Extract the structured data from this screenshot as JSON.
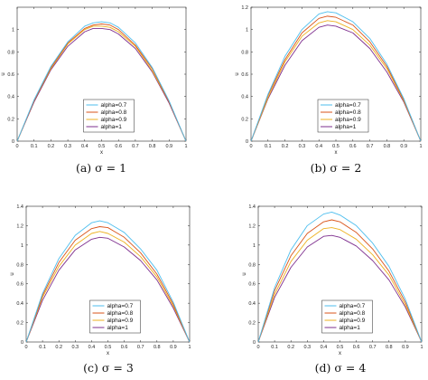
{
  "series_colors": [
    "#4DBEEE",
    "#D95319",
    "#EDB120",
    "#7E2F8E"
  ],
  "chart_data": [
    {
      "type": "line",
      "caption": "(a)  σ = 1",
      "xlabel": "x",
      "ylabel": "u",
      "xlim": [
        0,
        1
      ],
      "ylim": [
        0,
        1.2
      ],
      "xticks": [
        "0",
        "0.1",
        "0.2",
        "0.3",
        "0.4",
        "0.5",
        "0.6",
        "0.7",
        "0.8",
        "0.9",
        "1"
      ],
      "yticks": [
        "0",
        "0.2",
        "0.4",
        "0.6",
        "0.8",
        "1"
      ],
      "legend_position": "bottom-center",
      "x": [
        0,
        0.1,
        0.2,
        0.3,
        0.4,
        0.45,
        0.5,
        0.55,
        0.6,
        0.7,
        0.8,
        0.9,
        1
      ],
      "series": [
        {
          "name": "alpha=0.7",
          "values": [
            0,
            0.37,
            0.67,
            0.89,
            1.03,
            1.06,
            1.07,
            1.06,
            1.02,
            0.88,
            0.66,
            0.36,
            0
          ]
        },
        {
          "name": "alpha=0.8",
          "values": [
            0,
            0.36,
            0.66,
            0.88,
            1.01,
            1.04,
            1.05,
            1.04,
            1.0,
            0.86,
            0.65,
            0.35,
            0
          ]
        },
        {
          "name": "alpha=0.9",
          "values": [
            0,
            0.36,
            0.65,
            0.87,
            1.0,
            1.03,
            1.03,
            1.02,
            0.98,
            0.85,
            0.63,
            0.35,
            0
          ]
        },
        {
          "name": "alpha=1",
          "values": [
            0,
            0.35,
            0.64,
            0.85,
            0.98,
            1.01,
            1.01,
            1.0,
            0.96,
            0.83,
            0.62,
            0.34,
            0
          ]
        }
      ]
    },
    {
      "type": "line",
      "caption": "(b)  σ = 2",
      "xlabel": "x",
      "ylabel": "u",
      "xlim": [
        0,
        1
      ],
      "ylim": [
        0,
        1.2
      ],
      "xticks": [
        "0",
        "0.1",
        "0.2",
        "0.3",
        "0.4",
        "0.5",
        "0.6",
        "0.7",
        "0.8",
        "0.9",
        "1"
      ],
      "yticks": [
        "0",
        "0.2",
        "0.4",
        "0.6",
        "0.8",
        "1",
        "1.2"
      ],
      "legend_position": "bottom-center",
      "x": [
        0,
        0.1,
        0.2,
        0.3,
        0.4,
        0.45,
        0.5,
        0.6,
        0.7,
        0.8,
        0.9,
        1
      ],
      "series": [
        {
          "name": "alpha=0.7",
          "values": [
            0,
            0.42,
            0.76,
            1.0,
            1.14,
            1.16,
            1.15,
            1.07,
            0.92,
            0.69,
            0.38,
            0
          ]
        },
        {
          "name": "alpha=0.8",
          "values": [
            0,
            0.41,
            0.73,
            0.97,
            1.1,
            1.12,
            1.11,
            1.04,
            0.89,
            0.67,
            0.37,
            0
          ]
        },
        {
          "name": "alpha=0.9",
          "values": [
            0,
            0.39,
            0.71,
            0.94,
            1.06,
            1.08,
            1.07,
            1.0,
            0.86,
            0.65,
            0.36,
            0
          ]
        },
        {
          "name": "alpha=1",
          "values": [
            0,
            0.38,
            0.68,
            0.9,
            1.02,
            1.04,
            1.03,
            0.97,
            0.83,
            0.62,
            0.35,
            0
          ]
        }
      ]
    },
    {
      "type": "line",
      "caption": "(c)  σ = 3",
      "xlabel": "x",
      "ylabel": "u",
      "xlim": [
        0,
        1
      ],
      "ylim": [
        0,
        1.4
      ],
      "xticks": [
        "0",
        "0.1",
        "0.2",
        "0.3",
        "0.4",
        "0.5",
        "0.6",
        "0.7",
        "0.8",
        "0.9",
        "1"
      ],
      "yticks": [
        "0",
        "0.2",
        "0.4",
        "0.6",
        "0.8",
        "1",
        "1.2",
        "1.4"
      ],
      "legend_position": "bottom-center",
      "x": [
        0,
        0.1,
        0.2,
        0.3,
        0.4,
        0.45,
        0.5,
        0.6,
        0.7,
        0.8,
        0.9,
        1
      ],
      "series": [
        {
          "name": "alpha=0.7",
          "values": [
            0,
            0.5,
            0.86,
            1.1,
            1.23,
            1.25,
            1.23,
            1.13,
            0.96,
            0.74,
            0.41,
            0
          ]
        },
        {
          "name": "alpha=0.8",
          "values": [
            0,
            0.48,
            0.82,
            1.05,
            1.17,
            1.19,
            1.18,
            1.08,
            0.92,
            0.7,
            0.39,
            0
          ]
        },
        {
          "name": "alpha=0.9",
          "values": [
            0,
            0.46,
            0.78,
            1.0,
            1.12,
            1.14,
            1.12,
            1.03,
            0.88,
            0.67,
            0.37,
            0
          ]
        },
        {
          "name": "alpha=1",
          "values": [
            0,
            0.43,
            0.74,
            0.95,
            1.06,
            1.08,
            1.07,
            0.98,
            0.84,
            0.64,
            0.35,
            0
          ]
        }
      ]
    },
    {
      "type": "line",
      "caption": "(d)  σ = 4",
      "xlabel": "x",
      "ylabel": "u",
      "xlim": [
        0,
        1
      ],
      "ylim": [
        0,
        1.4
      ],
      "xticks": [
        "0",
        "0.1",
        "0.2",
        "0.3",
        "0.4",
        "0.5",
        "0.6",
        "0.7",
        "0.8",
        "0.9",
        "1"
      ],
      "yticks": [
        "0",
        "0.2",
        "0.4",
        "0.6",
        "0.8",
        "1",
        "1.2",
        "1.4"
      ],
      "legend_position": "bottom-center",
      "x": [
        0,
        0.1,
        0.2,
        0.3,
        0.4,
        0.45,
        0.5,
        0.6,
        0.7,
        0.8,
        0.9,
        1
      ],
      "series": [
        {
          "name": "alpha=0.7",
          "values": [
            0,
            0.56,
            0.95,
            1.2,
            1.32,
            1.34,
            1.31,
            1.2,
            1.02,
            0.78,
            0.44,
            0
          ]
        },
        {
          "name": "alpha=0.8",
          "values": [
            0,
            0.53,
            0.89,
            1.12,
            1.24,
            1.26,
            1.24,
            1.13,
            0.96,
            0.73,
            0.41,
            0
          ]
        },
        {
          "name": "alpha=0.9",
          "values": [
            0,
            0.49,
            0.83,
            1.05,
            1.17,
            1.18,
            1.16,
            1.06,
            0.9,
            0.69,
            0.38,
            0
          ]
        },
        {
          "name": "alpha=1",
          "values": [
            0,
            0.46,
            0.77,
            0.98,
            1.09,
            1.1,
            1.08,
            0.99,
            0.84,
            0.64,
            0.36,
            0
          ]
        }
      ]
    }
  ]
}
